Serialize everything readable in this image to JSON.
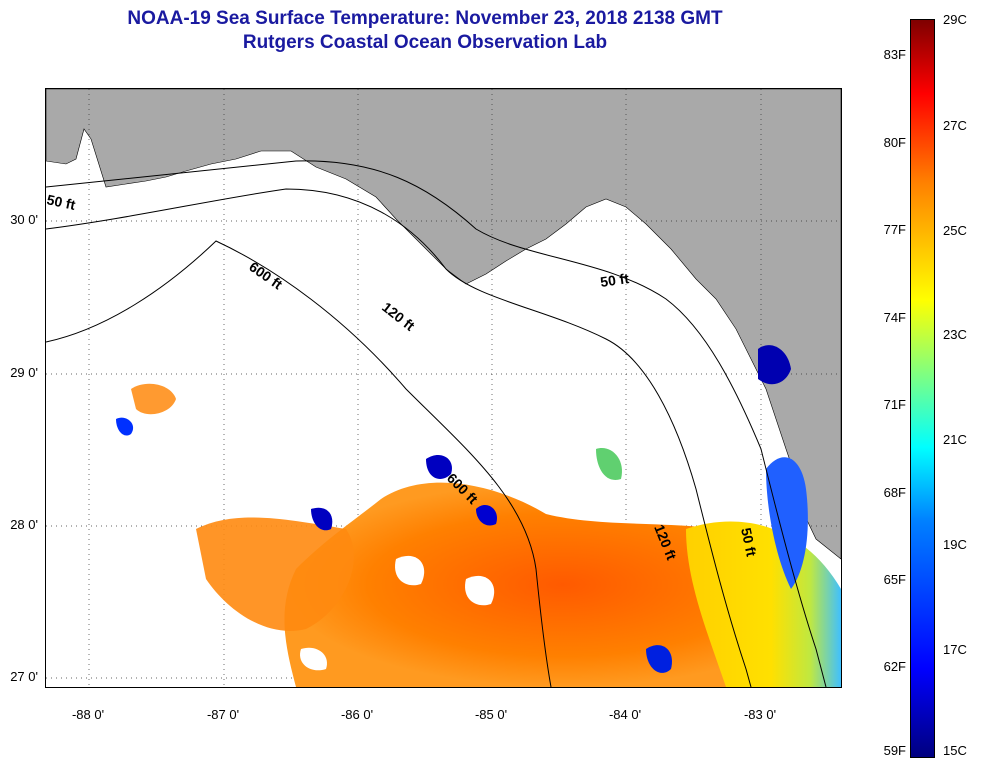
{
  "title": {
    "line1": "NOAA-19 Sea Surface Temperature:  November 23, 2018 2138 GMT",
    "line2": "Rutgers Coastal Ocean Observation Lab"
  },
  "axes": {
    "lat_ticks": [
      "30 0'",
      "29 0'",
      "28 0'",
      "27 0'"
    ],
    "lon_ticks": [
      "-88 0'",
      "-87 0'",
      "-86 0'",
      "-85 0'",
      "-84 0'",
      "-83 0'"
    ]
  },
  "contours": [
    "50 ft",
    "120 ft",
    "600 ft",
    "600 ft",
    "120 ft",
    "50 ft",
    "50 ft"
  ],
  "colorbar": {
    "fahrenheit": [
      "83F",
      "80F",
      "77F",
      "74F",
      "71F",
      "68F",
      "65F",
      "62F",
      "59F"
    ],
    "celsius": [
      "29C",
      "27C",
      "25C",
      "23C",
      "21C",
      "19C",
      "17C",
      "15C"
    ]
  },
  "colors": {
    "land": "#a9a9a9",
    "title": "#1a1aa0",
    "cold": "#0000cc",
    "warm": "#ff6a00"
  }
}
